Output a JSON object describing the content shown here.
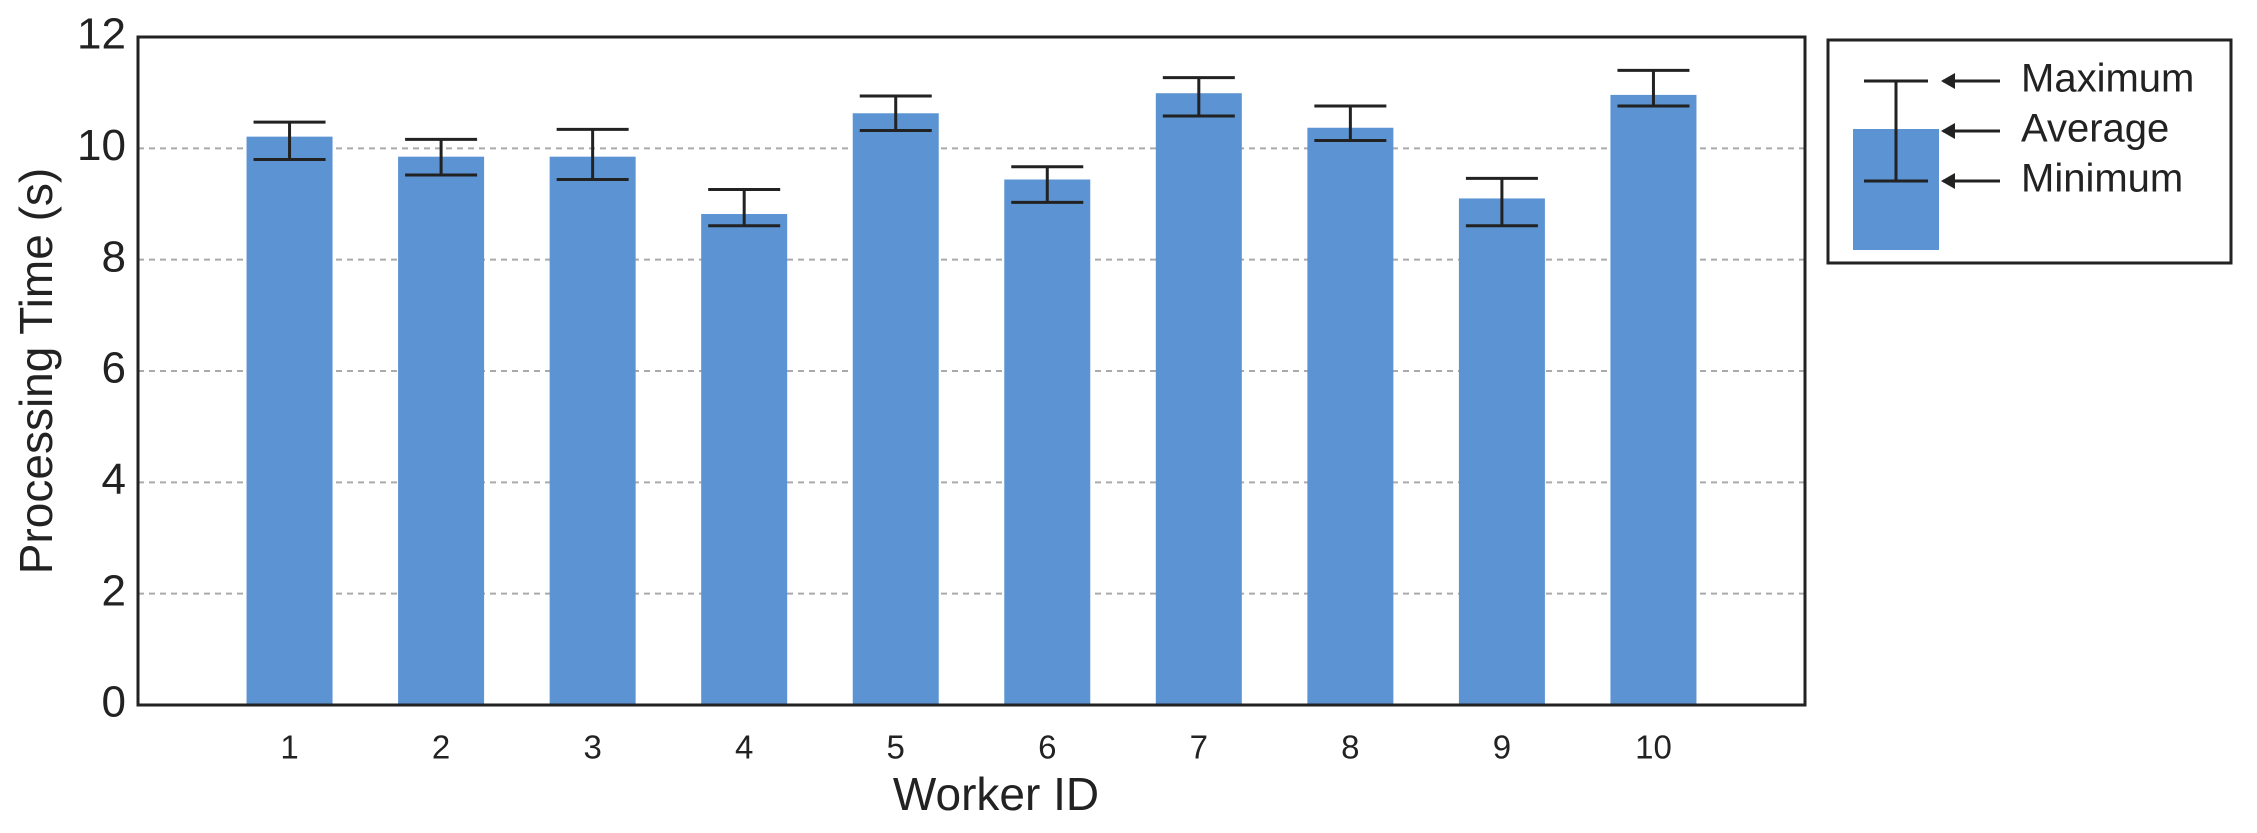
{
  "chart_data": {
    "type": "bar",
    "x_label": "Worker ID",
    "y_label": "Processing Time (s)",
    "categories": [
      "1",
      "2",
      "3",
      "4",
      "5",
      "6",
      "7",
      "8",
      "9",
      "10"
    ],
    "series": [
      {
        "color": "#5b93d3",
        "values": [
          10.21,
          9.85,
          9.85,
          8.82,
          10.63,
          9.44,
          10.99,
          10.37,
          9.1,
          10.96
        ],
        "max": [
          10.47,
          10.16,
          10.34,
          9.26,
          10.94,
          9.67,
          11.27,
          10.76,
          9.46,
          11.4
        ],
        "min": [
          9.8,
          9.52,
          9.44,
          8.61,
          10.32,
          9.03,
          10.58,
          10.14,
          8.61,
          10.76
        ]
      }
    ],
    "legend_labels": [
      "Maximum",
      "Average",
      "Minimum"
    ],
    "ylim": [
      0,
      12
    ],
    "yticks": [
      0,
      2,
      4,
      6,
      8,
      10,
      12
    ],
    "grid": true
  }
}
